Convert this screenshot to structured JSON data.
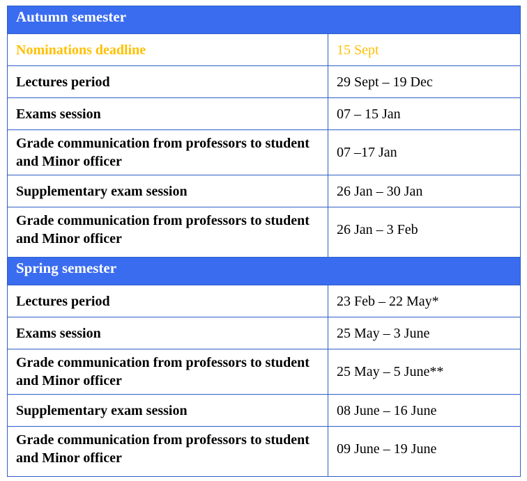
{
  "document": {
    "type": "academic-calendar-table",
    "colors": {
      "header_bg": "#3a6cf0",
      "header_text": "#ffffff",
      "border": "#2e5fc7",
      "highlight_text": "#FFC000",
      "body_text": "#000000"
    },
    "sections": [
      {
        "header": "Autumn semester",
        "rows": [
          {
            "label": "Nominations deadline",
            "value": "15 Sept",
            "highlight": true
          },
          {
            "label": "Lectures period",
            "value": "29 Sept – 19 Dec"
          },
          {
            "label": "Exams session",
            "value": "07 – 15 Jan"
          },
          {
            "label": "Grade communication from professors to student and Minor officer",
            "value": "07 –17 Jan"
          },
          {
            "label": "Supplementary exam session",
            "value": "26 Jan – 30 Jan"
          },
          {
            "label": "Grade communication from professors to student and Minor officer",
            "value": "26 Jan – 3 Feb"
          }
        ]
      },
      {
        "header": "Spring semester",
        "rows": [
          {
            "label": "Lectures period",
            "value": "23 Feb – 22 May*"
          },
          {
            "label": "Exams session",
            "value": "25 May – 3 June"
          },
          {
            "label": "Grade communication from professors to student and Minor officer",
            "value": "25 May – 5 June**"
          },
          {
            "label": "Supplementary exam session",
            "value": "08 June – 16 June"
          },
          {
            "label": "Grade communication from professors to student and Minor officer",
            "value": "09 June – 19 June"
          }
        ]
      }
    ]
  }
}
